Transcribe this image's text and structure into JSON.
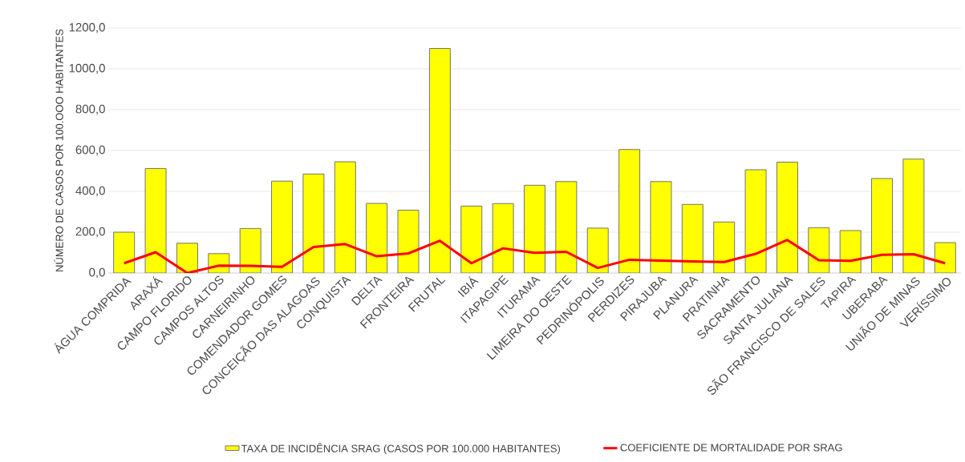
{
  "chart_data": {
    "type": "bar",
    "ylabel": "NÚMERO DE CASOS POR 100.OOO HABITANTES",
    "categories": [
      "ÁGUA COMPRIDA",
      "ARAXÁ",
      "CAMPO FLORIDO",
      "CAMPOS ALTOS",
      "CARNEIRINHO",
      "COMENDADOR GOMES",
      "CONCEIÇÃO DAS ALAGOAS",
      "CONQUISTA",
      "DELTA",
      "FRONTEIRA",
      "FRUTAL",
      "IBIÁ",
      "ITAPAGIPE",
      "ITURAMA",
      "LIMEIRA DO OESTE",
      "PEDRINÓPOLIS",
      "PERDIZES",
      "PIRAJUBA",
      "PLANURA",
      "PRATINHA",
      "SACRAMENTO",
      "SANTA JULIANA",
      "SÃO FRANCISCO DE SALES",
      "TAPIRA",
      "UBERABA",
      "UNIÃO DE MINAS",
      "VERÍSSIMO"
    ],
    "series": [
      {
        "name": "TAXA DE INCIDÊNCIA SRAG  (CASOS POR 100.000 HABITANTES)",
        "color": "#ffff00",
        "values": [
          200,
          512,
          146,
          95,
          218,
          450,
          485,
          545,
          341,
          308,
          1100,
          328,
          340,
          430,
          448,
          220,
          605,
          448,
          336,
          250,
          506,
          543,
          222,
          208,
          463,
          558,
          149
        ]
      },
      {
        "name": "COEFICIENTE DE MORTALIDADE POR SRAG",
        "type": "line",
        "color": "#ff0000",
        "values": [
          48,
          102,
          0,
          36,
          35,
          30,
          127,
          142,
          82,
          96,
          158,
          48,
          121,
          99,
          104,
          25,
          65,
          61,
          57,
          54,
          94,
          162,
          63,
          60,
          89,
          92,
          48
        ]
      }
    ],
    "ylim": [
      0,
      1200
    ],
    "yticks": [
      {
        "value": 0,
        "label": "0,0"
      },
      {
        "value": 200,
        "label": "200,0"
      },
      {
        "value": 400,
        "label": "400,0"
      },
      {
        "value": 600,
        "label": "600,0"
      },
      {
        "value": 800,
        "label": "800,0"
      },
      {
        "value": 1000,
        "label": "1000,0"
      },
      {
        "value": 1200,
        "label": "1200,0"
      }
    ],
    "grid": "y",
    "legend": "bottom",
    "marker": "none",
    "line_style": "solid"
  }
}
